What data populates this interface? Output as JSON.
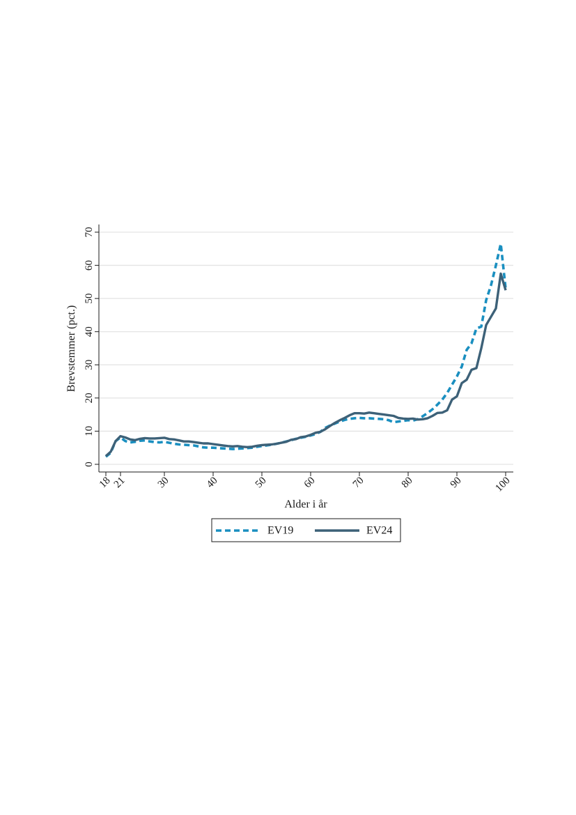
{
  "chart_data": {
    "type": "line",
    "xlabel": "Alder i år",
    "ylabel": "Brevstemmer (pct.)",
    "xlim": [
      18,
      100
    ],
    "ylim": [
      0,
      70
    ],
    "x_ticks": [
      18,
      21,
      30,
      40,
      50,
      60,
      70,
      80,
      90,
      100
    ],
    "y_ticks": [
      0,
      10,
      20,
      30,
      40,
      50,
      60,
      70
    ],
    "grid": true,
    "legend_position": "bottom",
    "series": [
      {
        "name": "EV19",
        "color": "#1a8fc0",
        "style": "dashed",
        "points": [
          [
            18,
            2.3
          ],
          [
            19,
            3.5
          ],
          [
            20,
            7.0
          ],
          [
            21,
            8.1
          ],
          [
            22,
            7.0
          ],
          [
            23,
            6.6
          ],
          [
            24,
            6.8
          ],
          [
            25,
            7.1
          ],
          [
            26,
            7.2
          ],
          [
            27,
            6.9
          ],
          [
            28,
            6.7
          ],
          [
            29,
            6.6
          ],
          [
            30,
            6.8
          ],
          [
            31,
            6.5
          ],
          [
            32,
            6.2
          ],
          [
            33,
            6.0
          ],
          [
            34,
            5.9
          ],
          [
            35,
            5.8
          ],
          [
            36,
            5.7
          ],
          [
            37,
            5.4
          ],
          [
            38,
            5.1
          ],
          [
            39,
            5.0
          ],
          [
            40,
            5.0
          ],
          [
            41,
            4.9
          ],
          [
            42,
            4.8
          ],
          [
            43,
            4.7
          ],
          [
            44,
            4.6
          ],
          [
            45,
            4.7
          ],
          [
            46,
            4.8
          ],
          [
            47,
            4.9
          ],
          [
            48,
            5.0
          ],
          [
            49,
            5.3
          ],
          [
            50,
            5.5
          ],
          [
            51,
            5.7
          ],
          [
            52,
            5.9
          ],
          [
            53,
            6.2
          ],
          [
            54,
            6.5
          ],
          [
            55,
            6.9
          ],
          [
            56,
            7.3
          ],
          [
            57,
            7.7
          ],
          [
            58,
            8.0
          ],
          [
            59,
            8.3
          ],
          [
            60,
            8.7
          ],
          [
            61,
            9.1
          ],
          [
            62,
            9.8
          ],
          [
            63,
            11.0
          ],
          [
            64,
            11.7
          ],
          [
            65,
            12.3
          ],
          [
            66,
            12.9
          ],
          [
            67,
            13.4
          ],
          [
            68,
            13.7
          ],
          [
            69,
            13.9
          ],
          [
            70,
            14.0
          ],
          [
            71,
            13.9
          ],
          [
            72,
            13.9
          ],
          [
            73,
            13.8
          ],
          [
            74,
            13.7
          ],
          [
            75,
            13.6
          ],
          [
            76,
            13.3
          ],
          [
            77,
            12.7
          ],
          [
            78,
            12.9
          ],
          [
            79,
            13.1
          ],
          [
            80,
            13.3
          ],
          [
            81,
            13.2
          ],
          [
            82,
            13.6
          ],
          [
            83,
            14.5
          ],
          [
            84,
            15.5
          ],
          [
            85,
            16.6
          ],
          [
            86,
            18.0
          ],
          [
            87,
            19.5
          ],
          [
            88,
            21.5
          ],
          [
            89,
            24.0
          ],
          [
            90,
            26.5
          ],
          [
            91,
            29.5
          ],
          [
            92,
            34.5
          ],
          [
            93,
            36.5
          ],
          [
            94,
            41.0
          ],
          [
            95,
            41.5
          ],
          [
            96,
            49.5
          ],
          [
            97,
            54.0
          ],
          [
            98,
            60.0
          ],
          [
            99,
            66.5
          ],
          [
            100,
            53.0
          ]
        ]
      },
      {
        "name": "EV24",
        "color": "#3d6178",
        "style": "solid",
        "points": [
          [
            18,
            2.5
          ],
          [
            19,
            3.8
          ],
          [
            20,
            7.0
          ],
          [
            21,
            8.5
          ],
          [
            22,
            8.1
          ],
          [
            23,
            7.5
          ],
          [
            24,
            7.3
          ],
          [
            25,
            7.7
          ],
          [
            26,
            7.9
          ],
          [
            27,
            7.8
          ],
          [
            28,
            7.8
          ],
          [
            29,
            7.9
          ],
          [
            30,
            8.0
          ],
          [
            31,
            7.6
          ],
          [
            32,
            7.5
          ],
          [
            33,
            7.2
          ],
          [
            34,
            6.9
          ],
          [
            35,
            6.9
          ],
          [
            36,
            6.7
          ],
          [
            37,
            6.5
          ],
          [
            38,
            6.3
          ],
          [
            39,
            6.3
          ],
          [
            40,
            6.1
          ],
          [
            41,
            5.9
          ],
          [
            42,
            5.7
          ],
          [
            43,
            5.5
          ],
          [
            44,
            5.4
          ],
          [
            45,
            5.5
          ],
          [
            46,
            5.3
          ],
          [
            47,
            5.2
          ],
          [
            48,
            5.3
          ],
          [
            49,
            5.6
          ],
          [
            50,
            5.8
          ],
          [
            51,
            5.9
          ],
          [
            52,
            6.0
          ],
          [
            53,
            6.2
          ],
          [
            54,
            6.5
          ],
          [
            55,
            6.8
          ],
          [
            56,
            7.4
          ],
          [
            57,
            7.6
          ],
          [
            58,
            8.2
          ],
          [
            59,
            8.4
          ],
          [
            60,
            8.9
          ],
          [
            61,
            9.5
          ],
          [
            62,
            9.8
          ],
          [
            63,
            10.6
          ],
          [
            64,
            11.6
          ],
          [
            65,
            12.5
          ],
          [
            66,
            13.3
          ],
          [
            67,
            14.0
          ],
          [
            68,
            14.8
          ],
          [
            69,
            15.4
          ],
          [
            70,
            15.4
          ],
          [
            71,
            15.3
          ],
          [
            72,
            15.6
          ],
          [
            73,
            15.4
          ],
          [
            74,
            15.2
          ],
          [
            75,
            15.0
          ],
          [
            76,
            14.8
          ],
          [
            77,
            14.6
          ],
          [
            78,
            14.0
          ],
          [
            79,
            13.8
          ],
          [
            80,
            13.7
          ],
          [
            81,
            13.8
          ],
          [
            82,
            13.5
          ],
          [
            83,
            13.6
          ],
          [
            84,
            13.9
          ],
          [
            85,
            14.6
          ],
          [
            86,
            15.5
          ],
          [
            87,
            15.6
          ],
          [
            88,
            16.3
          ],
          [
            89,
            19.5
          ],
          [
            90,
            20.5
          ],
          [
            91,
            24.5
          ],
          [
            92,
            25.5
          ],
          [
            93,
            28.5
          ],
          [
            94,
            29.0
          ],
          [
            95,
            35.0
          ],
          [
            96,
            42.0
          ],
          [
            97,
            44.5
          ],
          [
            98,
            47.0
          ],
          [
            99,
            57.5
          ],
          [
            100,
            52.5
          ]
        ]
      }
    ]
  }
}
